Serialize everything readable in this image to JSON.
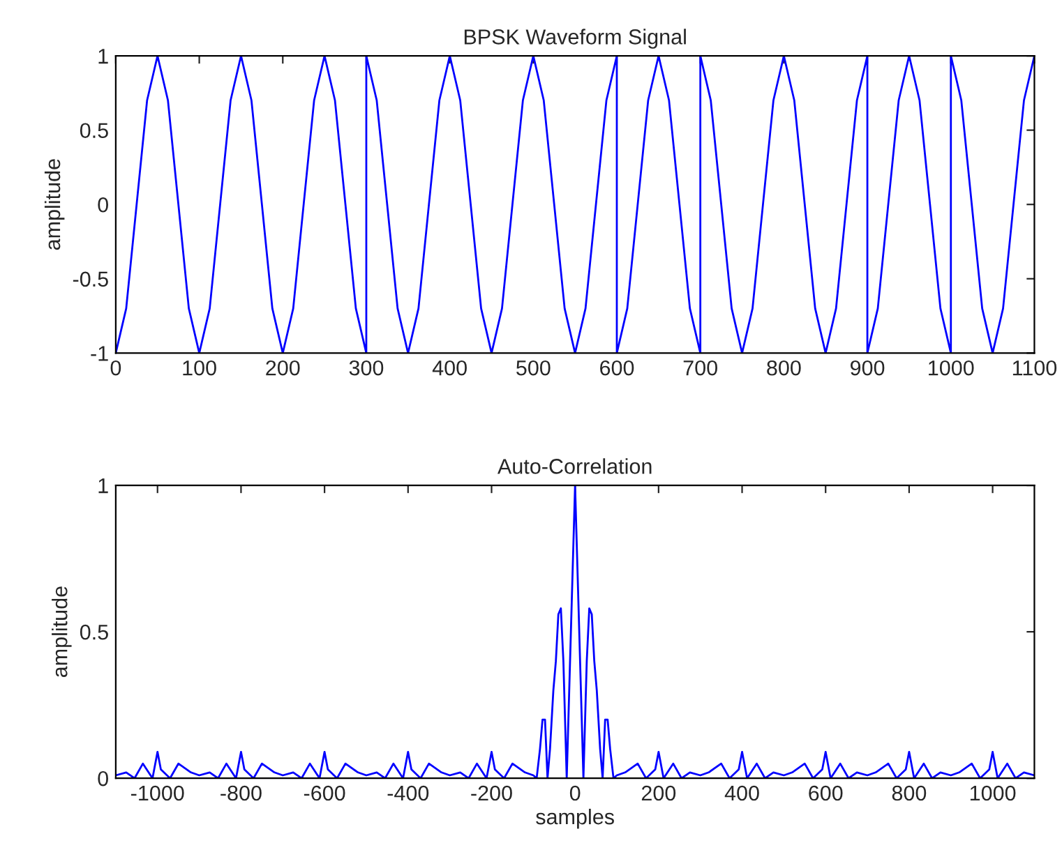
{
  "chart_data": [
    {
      "type": "line",
      "title": "BPSK Waveform Signal",
      "ylabel": "amplitude",
      "xlim": [
        0,
        1100
      ],
      "ylim": [
        -1,
        1
      ],
      "xticks": [
        0,
        100,
        200,
        300,
        400,
        500,
        600,
        700,
        800,
        900,
        1000,
        1100
      ],
      "yticks": [
        -1,
        -0.5,
        0,
        0.5,
        1
      ],
      "grid": false,
      "marker": "none",
      "line_style": "solid",
      "series": [
        {
          "color": "#0000ff",
          "x": [
            0,
            12.5,
            25,
            37.5,
            50,
            62.5,
            75,
            87.5,
            100,
            112.5,
            125,
            137.5,
            150,
            162.5,
            175,
            187.5,
            200,
            212.5,
            225,
            237.5,
            250,
            262.5,
            275,
            287.5,
            300,
            300,
            312.5,
            325,
            337.5,
            350,
            362.5,
            375,
            387.5,
            400,
            412.5,
            425,
            437.5,
            450,
            462.5,
            475,
            487.5,
            500,
            512.5,
            525,
            537.5,
            550,
            562.5,
            575,
            587.5,
            600,
            600,
            612.5,
            625,
            637.5,
            650,
            662.5,
            675,
            687.5,
            700,
            700,
            712.5,
            725,
            737.5,
            750,
            762.5,
            775,
            787.5,
            800,
            812.5,
            825,
            837.5,
            850,
            862.5,
            875,
            887.5,
            900,
            900,
            912.5,
            925,
            937.5,
            950,
            962.5,
            975,
            987.5,
            1000,
            1000,
            1012.5,
            1025,
            1037.5,
            1050,
            1062.5,
            1075,
            1087.5,
            1100
          ],
          "values": [
            -1,
            -0.7,
            0,
            0.7,
            1,
            0.7,
            0,
            -0.7,
            -1,
            -0.7,
            0,
            0.7,
            1,
            0.7,
            0,
            -0.7,
            -1,
            -0.7,
            0,
            0.7,
            1,
            0.7,
            0,
            -0.7,
            -1,
            1,
            0.7,
            0,
            -0.7,
            -1,
            -0.7,
            0,
            0.7,
            1,
            0.7,
            0,
            -0.7,
            -1,
            -0.7,
            0,
            0.7,
            1,
            0.7,
            0,
            -0.7,
            -1,
            -0.7,
            0,
            0.7,
            1,
            -1,
            -0.7,
            0,
            0.7,
            1,
            0.7,
            0,
            -0.7,
            -1,
            1,
            0.7,
            0,
            -0.7,
            -1,
            -0.7,
            0,
            0.7,
            1,
            0.7,
            0,
            -0.7,
            -1,
            -0.7,
            0,
            0.7,
            1,
            -1,
            -0.7,
            0,
            0.7,
            1,
            0.7,
            0,
            -0.7,
            -1,
            1,
            0.7,
            0,
            -0.7,
            -1,
            -0.7,
            0,
            0.7,
            1
          ]
        }
      ]
    },
    {
      "type": "line",
      "title": "Auto-Correlation",
      "xlabel": "samples",
      "ylabel": "amplitude",
      "xlim": [
        -1100,
        1100
      ],
      "ylim": [
        0,
        1
      ],
      "xticks": [
        -1000,
        -800,
        -600,
        -400,
        -200,
        0,
        200,
        400,
        600,
        800,
        1000
      ],
      "yticks": [
        0,
        0.5,
        1
      ],
      "grid": false,
      "marker": "none",
      "line_style": "solid",
      "series": [
        {
          "color": "#0000ff",
          "x": [
            -1100,
            -1075,
            -1055,
            -1035,
            -1012,
            -1000,
            -992,
            -970,
            -950,
            -920,
            -900,
            -875,
            -855,
            -835,
            -812,
            -800,
            -792,
            -770,
            -750,
            -720,
            -700,
            -675,
            -655,
            -635,
            -612,
            -600,
            -592,
            -570,
            -550,
            -520,
            -500,
            -475,
            -455,
            -435,
            -412,
            -400,
            -392,
            -370,
            -350,
            -320,
            -300,
            -275,
            -255,
            -235,
            -212,
            -200,
            -192,
            -170,
            -150,
            -120,
            -100,
            -92,
            -84,
            -78,
            -72,
            -66,
            -60,
            -52,
            -46,
            -40,
            -34,
            -28,
            -20,
            -14,
            -8,
            -3,
            0,
            3,
            8,
            14,
            20,
            28,
            34,
            40,
            46,
            52,
            60,
            66,
            72,
            78,
            84,
            92,
            100,
            120,
            150,
            170,
            192,
            200,
            212,
            235,
            255,
            275,
            300,
            320,
            350,
            370,
            392,
            400,
            412,
            435,
            455,
            475,
            500,
            520,
            550,
            570,
            592,
            600,
            612,
            635,
            655,
            675,
            700,
            720,
            750,
            770,
            792,
            800,
            812,
            835,
            855,
            875,
            900,
            920,
            950,
            970,
            992,
            1000,
            1012,
            1035,
            1055,
            1075,
            1100
          ],
          "values": [
            0.01,
            0.02,
            0,
            0.05,
            0,
            0.09,
            0.03,
            0,
            0.05,
            0.02,
            0.01,
            0.02,
            0,
            0.05,
            0,
            0.09,
            0.03,
            0,
            0.05,
            0.02,
            0.01,
            0.02,
            0,
            0.05,
            0,
            0.09,
            0.03,
            0,
            0.05,
            0.02,
            0.01,
            0.02,
            0,
            0.05,
            0,
            0.09,
            0.03,
            0,
            0.05,
            0.02,
            0.01,
            0.02,
            0,
            0.05,
            0,
            0.09,
            0.03,
            0,
            0.05,
            0.02,
            0.01,
            0,
            0.1,
            0.2,
            0.2,
            0,
            0.1,
            0.3,
            0.4,
            0.56,
            0.58,
            0.4,
            0,
            0.3,
            0.6,
            0.85,
            1,
            0.85,
            0.6,
            0.3,
            0,
            0.4,
            0.58,
            0.56,
            0.4,
            0.3,
            0.1,
            0,
            0.2,
            0.2,
            0.1,
            0,
            0.01,
            0.02,
            0.05,
            0,
            0.03,
            0.09,
            0,
            0.05,
            0,
            0.02,
            0.01,
            0.02,
            0.05,
            0,
            0.03,
            0.09,
            0,
            0.05,
            0,
            0.02,
            0.01,
            0.02,
            0.05,
            0,
            0.03,
            0.09,
            0,
            0.05,
            0,
            0.02,
            0.01,
            0.02,
            0.05,
            0,
            0.03,
            0.09,
            0,
            0.05,
            0,
            0.02,
            0.01,
            0.02,
            0.05,
            0,
            0.03,
            0.09,
            0,
            0.05,
            0,
            0.02,
            0.01
          ]
        }
      ]
    }
  ]
}
